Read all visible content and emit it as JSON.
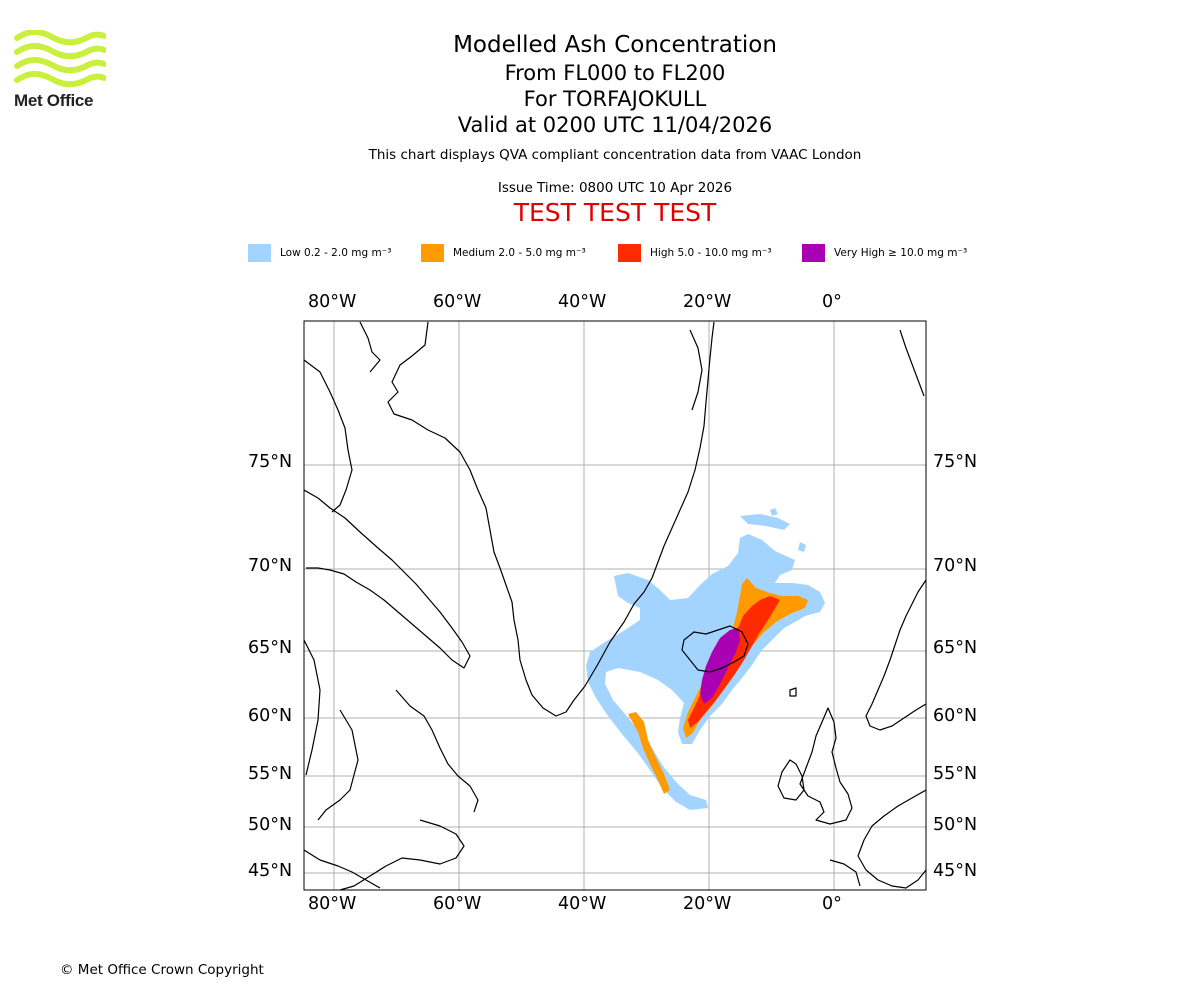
{
  "logo": {
    "text": "Met Office",
    "color": "#c8f03c"
  },
  "header": {
    "title": "Modelled Ash Concentration",
    "level_range": "From FL000 to FL200",
    "volcano": "For TORFAJOKULL",
    "valid_time": "Valid at 0200 UTC 11/04/2026",
    "description": "This chart displays QVA compliant concentration data from VAAC London",
    "issue_time": "Issue Time: 0800 UTC 10 Apr 2026",
    "test_banner": "TEST TEST TEST"
  },
  "legend": [
    {
      "label": "Low 0.2 - 2.0 mg m⁻³",
      "color": "#a3d4ff"
    },
    {
      "label": "Medium 2.0 - 5.0 mg m⁻³",
      "color": "#ff9a00"
    },
    {
      "label": "High 5.0 - 10.0 mg m⁻³",
      "color": "#ff2a00"
    },
    {
      "label": "Very High ≥ 10.0 mg m⁻³",
      "color": "#aa00b4"
    }
  ],
  "map": {
    "lon_ticks": [
      "80°W",
      "60°W",
      "40°W",
      "20°W",
      "0°"
    ],
    "lat_ticks": [
      "75°N",
      "70°N",
      "65°N",
      "60°N",
      "55°N",
      "50°N",
      "45°N"
    ]
  },
  "footer": {
    "copyright": "© Met Office Crown Copyright"
  }
}
